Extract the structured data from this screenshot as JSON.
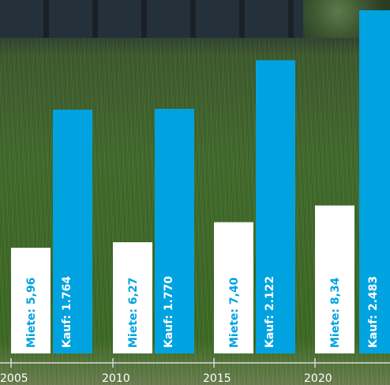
{
  "chart_data": {
    "type": "bar",
    "categories": [
      "2005",
      "2010",
      "2015",
      "2020",
      "2025"
    ],
    "series": [
      {
        "key": "miete",
        "values": [
          5.96,
          6.27,
          7.4,
          8.34,
          null
        ],
        "labels": [
          "Miete: 5,96",
          "Miete: 6,27",
          "Miete: 7,40",
          "Miete: 8,34",
          ""
        ]
      },
      {
        "key": "kauf",
        "values": [
          1764,
          1770,
          2122,
          null,
          2483
        ],
        "labels": [
          "Kauf: 1.764",
          "Kauf: 1.770",
          "Kauf: 2.122",
          "",
          "Kauf: 2.483"
        ]
      }
    ],
    "x_tick_labels": [
      "2005",
      "2010",
      "2015",
      "2020"
    ],
    "colors": {
      "miete": "#ffffff",
      "kauf": "#00a3e0",
      "miete_text": "#00a3e0",
      "kauf_text": "#ffffff",
      "axis": "#d9d9d9"
    }
  }
}
